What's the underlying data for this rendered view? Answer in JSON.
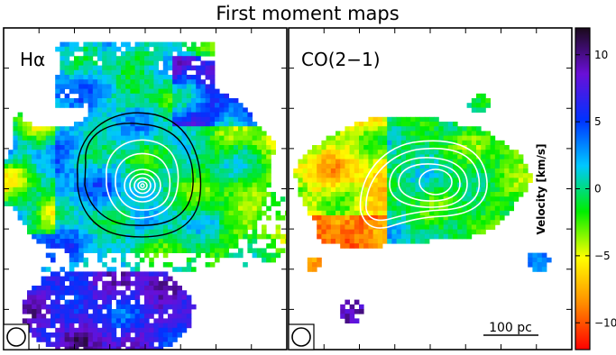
{
  "figure": {
    "title": "First moment maps",
    "panels": [
      {
        "label": "Hα"
      },
      {
        "label": "CO(2−1)"
      }
    ],
    "scalebar": "100 pc"
  },
  "colorbar": {
    "label": "Velocity [km/s]",
    "range": [
      -12,
      12
    ],
    "ticks": [
      {
        "value": 10,
        "label": "10"
      },
      {
        "value": 5,
        "label": "5"
      },
      {
        "value": 0,
        "label": "0"
      },
      {
        "value": -5,
        "label": "−5"
      },
      {
        "value": -10,
        "label": "−10"
      }
    ],
    "colors": [
      "#ff0000",
      "#ff8c00",
      "#ffff00",
      "#00ee00",
      "#00c8ff",
      "#0032ff",
      "#6a0fd8",
      "#1a0a1a"
    ]
  },
  "colors": {
    "frame": "#000000",
    "contour_light": "#ffffff",
    "contour_dark": "#000000"
  }
}
